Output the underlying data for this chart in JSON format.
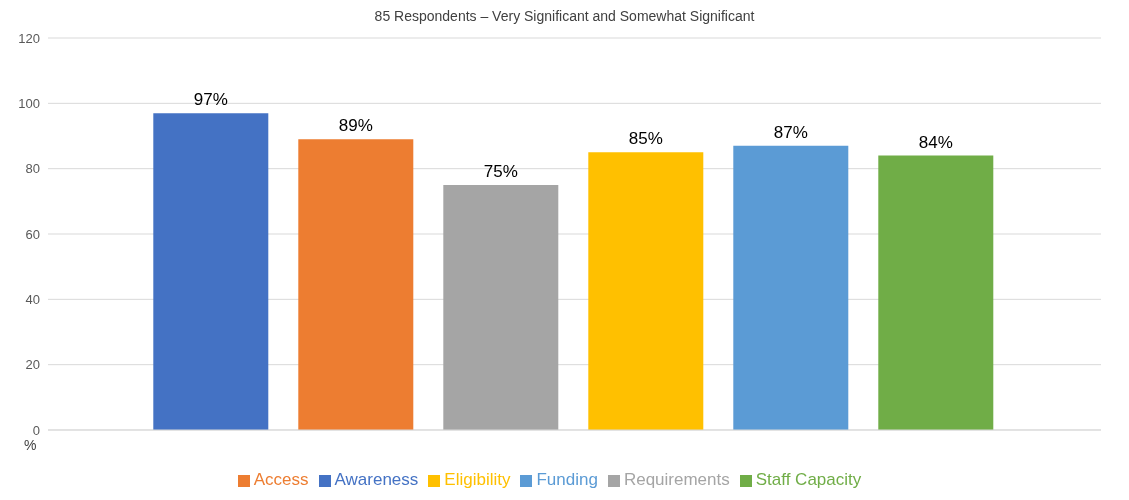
{
  "chart_data": {
    "type": "bar",
    "title": "85 Respondents – Very Significant and Somewhat Significant",
    "ylabel": "%",
    "categories": [
      null
    ],
    "series": [
      {
        "name": "Awareness",
        "color": "#4472c4",
        "values": [
          97
        ],
        "value_labels": [
          "97%"
        ]
      },
      {
        "name": "Access",
        "color": "#ed7d31",
        "values": [
          89
        ],
        "value_labels": [
          "89%"
        ]
      },
      {
        "name": "Requirements",
        "color": "#a5a5a5",
        "values": [
          75
        ],
        "value_labels": [
          "75%"
        ]
      },
      {
        "name": "Eligibility",
        "color": "#ffc000",
        "values": [
          85
        ],
        "value_labels": [
          "85%"
        ]
      },
      {
        "name": "Funding",
        "color": "#5b9bd5",
        "values": [
          87
        ],
        "value_labels": [
          "87%"
        ]
      },
      {
        "name": "Staff Capacity",
        "color": "#70ad47",
        "values": [
          84
        ],
        "value_labels": [
          "84%"
        ]
      }
    ],
    "ylim": [
      0,
      120
    ],
    "yticks": [
      0,
      20,
      40,
      60,
      80,
      100,
      120
    ],
    "grid": "y",
    "legend": "bottom"
  }
}
